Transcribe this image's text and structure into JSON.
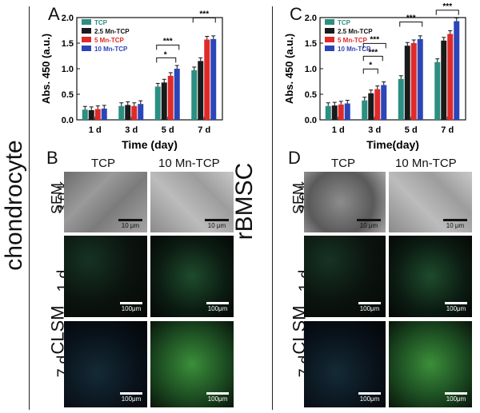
{
  "side_labels": {
    "left": "chondrocyte",
    "right": "rBMSC"
  },
  "panels": {
    "A": {
      "letter": "A"
    },
    "B": {
      "letter": "B"
    },
    "C": {
      "letter": "C"
    },
    "D": {
      "letter": "D"
    }
  },
  "image_grid": {
    "col_headers": [
      "TCP",
      "10 Mn-TCP"
    ],
    "row_labels": {
      "sem": "SEM",
      "sem_mag": "3.0 k",
      "clsm": "CLSM",
      "day1": "1 d",
      "day7": "7 d"
    },
    "sem_scale": "10 μm",
    "clsm_scale": "100μm"
  },
  "chart_data": [
    {
      "type": "bar",
      "categories": [
        "1 d",
        "3 d",
        "5 d",
        "7 d"
      ],
      "xlabel": "Time (day)",
      "ylabel": "Abs. 450 (a.u.)",
      "ylim": [
        0,
        2.0
      ],
      "yticks": [
        "0.0",
        "0.5",
        "1.0",
        "1.5",
        "2.0"
      ],
      "series": [
        {
          "name": "TCP",
          "color": "#2b8f82",
          "values": [
            0.2,
            0.27,
            0.65,
            0.97
          ]
        },
        {
          "name": "2.5 Mn-TCP",
          "color": "#1a1a1a",
          "values": [
            0.19,
            0.29,
            0.73,
            1.15
          ]
        },
        {
          "name": "5 Mn-TCP",
          "color": "#e02a2a",
          "values": [
            0.21,
            0.27,
            0.86,
            1.57
          ]
        },
        {
          "name": "10 Mn-TCP",
          "color": "#2c45b8",
          "values": [
            0.22,
            0.31,
            1.0,
            1.58
          ]
        }
      ],
      "significance": [
        "*",
        "***",
        "***"
      ]
    },
    {
      "type": "bar",
      "categories": [
        "1 d",
        "3 d",
        "5 d",
        "7 d"
      ],
      "xlabel": "Time(day)",
      "ylabel": "Abs. 450 (a.u.)",
      "ylim": [
        0,
        2.0
      ],
      "yticks": [
        "0.0",
        "0.5",
        "1.0",
        "1.5",
        "2.0"
      ],
      "series": [
        {
          "name": "TCP",
          "color": "#2b8f82",
          "values": [
            0.27,
            0.38,
            0.8,
            1.13
          ]
        },
        {
          "name": "2.5 Mn-TCP",
          "color": "#1a1a1a",
          "values": [
            0.28,
            0.52,
            1.45,
            1.55
          ]
        },
        {
          "name": "5 Mn-TCP",
          "color": "#e02a2a",
          "values": [
            0.3,
            0.6,
            1.5,
            1.68
          ]
        },
        {
          "name": "10 Mn-TCP",
          "color": "#2c45b8",
          "values": [
            0.32,
            0.68,
            1.58,
            1.93
          ]
        }
      ],
      "significance": [
        "*",
        "***",
        "***",
        "***",
        "***"
      ]
    }
  ]
}
